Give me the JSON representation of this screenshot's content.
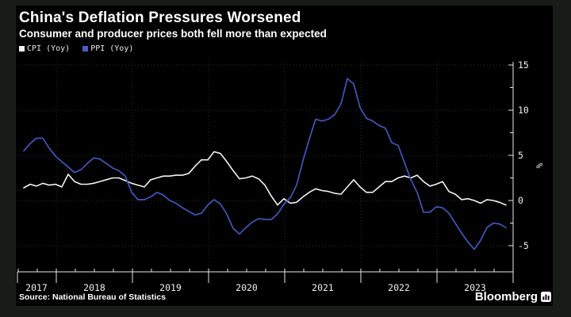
{
  "header": {
    "title": "China's Deflation Pressures Worsened",
    "subtitle": "Consumer and producer prices both fell more than expected"
  },
  "legend": [
    {
      "label": "CPI (Yoy)",
      "color": "#f2f2f2"
    },
    {
      "label": "PPI (Yoy)",
      "color": "#4a5cc9"
    }
  ],
  "footer": {
    "source": "Source: National Bureau of Statistics",
    "brand": "Bloomberg"
  },
  "colors": {
    "page_background": "#181c18",
    "panel_background": "#000000",
    "cpi_line": "#f2f2f2",
    "ppi_line": "#4156bd",
    "grid": "#2b2b2b",
    "axis": "#e8e8e8",
    "tick_text": "#f0f0f0"
  },
  "chart_data": {
    "type": "line",
    "title": "China's Deflation Pressures Worsened",
    "subtitle": "Consumer and producer prices both fell more than expected",
    "frequency": "monthly",
    "x_start": "2017-07",
    "x_end": "2023-11",
    "x_axis_end": "2024-01",
    "x_tick_labels": [
      "2017",
      "2018",
      "2019",
      "2020",
      "2021",
      "2022",
      "2023"
    ],
    "ylabel": "%",
    "ylim": [
      -7.9,
      15.4
    ],
    "yticks": [
      15,
      10,
      5,
      0,
      -5
    ],
    "y_minor_step": 2.5,
    "grid": true,
    "legend_position": "top-left",
    "series": [
      {
        "name": "CPI (Yoy)",
        "color": "#f2f2f2",
        "values": [
          1.4,
          1.8,
          1.6,
          1.9,
          1.7,
          1.8,
          1.5,
          2.9,
          2.1,
          1.8,
          1.8,
          1.9,
          2.1,
          2.3,
          2.5,
          2.5,
          2.2,
          1.9,
          1.7,
          1.5,
          2.3,
          2.5,
          2.7,
          2.7,
          2.8,
          2.8,
          3.0,
          3.8,
          4.5,
          4.5,
          5.4,
          5.2,
          4.3,
          3.3,
          2.4,
          2.5,
          2.7,
          2.4,
          1.7,
          0.5,
          -0.5,
          0.2,
          -0.3,
          -0.2,
          0.4,
          0.9,
          1.3,
          1.1,
          1.0,
          0.8,
          0.7,
          1.5,
          2.3,
          1.5,
          0.9,
          0.9,
          1.5,
          2.1,
          2.1,
          2.5,
          2.7,
          2.5,
          2.8,
          2.1,
          1.6,
          1.8,
          2.1,
          1.0,
          0.7,
          0.1,
          0.2,
          0.0,
          -0.3,
          0.1,
          0.0,
          -0.2,
          -0.5
        ]
      },
      {
        "name": "PPI (Yoy)",
        "color": "#4156bd",
        "values": [
          5.5,
          6.3,
          6.9,
          6.9,
          5.8,
          4.9,
          4.3,
          3.7,
          3.1,
          3.4,
          4.1,
          4.7,
          4.6,
          4.1,
          3.6,
          3.3,
          2.7,
          0.9,
          0.1,
          0.1,
          0.4,
          0.9,
          0.6,
          0.0,
          -0.3,
          -0.8,
          -1.2,
          -1.6,
          -1.4,
          -0.5,
          0.1,
          -0.4,
          -1.5,
          -3.1,
          -3.7,
          -3.0,
          -2.4,
          -2.0,
          -2.1,
          -2.1,
          -1.5,
          -0.4,
          0.3,
          1.7,
          4.4,
          6.8,
          9.0,
          8.8,
          9.0,
          9.5,
          10.7,
          13.5,
          12.9,
          10.3,
          9.1,
          8.8,
          8.3,
          8.0,
          6.4,
          6.1,
          4.2,
          2.3,
          0.9,
          -1.3,
          -1.3,
          -0.7,
          -0.8,
          -1.4,
          -2.5,
          -3.6,
          -4.6,
          -5.4,
          -4.4,
          -3.0,
          -2.5,
          -2.6,
          -3.0
        ]
      }
    ]
  }
}
